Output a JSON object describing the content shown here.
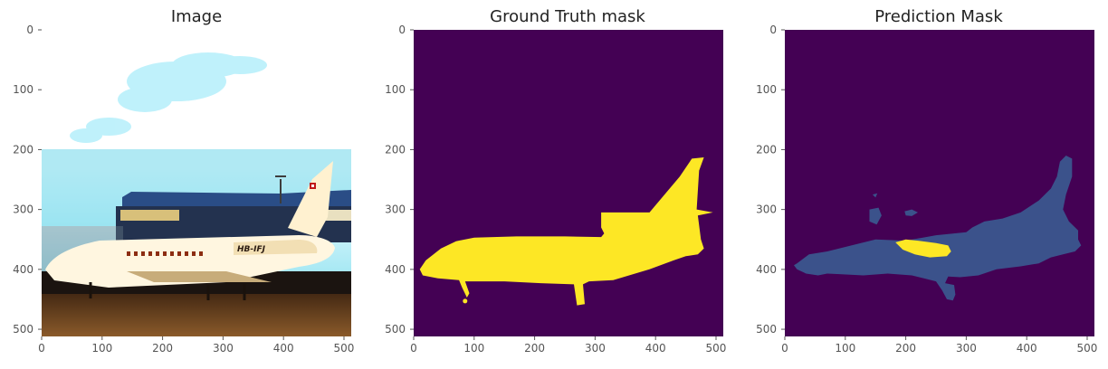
{
  "chart_data": [
    {
      "type": "image",
      "title": "Image",
      "xlim": [
        0,
        512
      ],
      "ylim": [
        512,
        0
      ],
      "xticks": [
        0,
        100,
        200,
        300,
        400,
        500
      ],
      "yticks": [
        0,
        100,
        200,
        300,
        400,
        500
      ],
      "grid": false,
      "content": "photo",
      "aircraft_registration": "HB-IFJ"
    },
    {
      "type": "heatmap",
      "title": "Ground Truth mask",
      "xlim": [
        0,
        512
      ],
      "ylim": [
        512,
        0
      ],
      "xticks": [
        0,
        100,
        200,
        300,
        400,
        500
      ],
      "yticks": [
        0,
        100,
        200,
        300,
        400,
        500
      ],
      "grid": false,
      "colors": {
        "background": "#440154",
        "foreground": "#fde725"
      },
      "mask_outline": [
        [
          10,
          400
        ],
        [
          20,
          385
        ],
        [
          45,
          365
        ],
        [
          70,
          353
        ],
        [
          100,
          347
        ],
        [
          170,
          345
        ],
        [
          250,
          345
        ],
        [
          310,
          346
        ],
        [
          315,
          340
        ],
        [
          310,
          330
        ],
        [
          310,
          305
        ],
        [
          390,
          305
        ],
        [
          440,
          245
        ],
        [
          460,
          215
        ],
        [
          480,
          213
        ],
        [
          472,
          235
        ],
        [
          468,
          300
        ],
        [
          495,
          305
        ],
        [
          470,
          310
        ],
        [
          475,
          350
        ],
        [
          480,
          365
        ],
        [
          470,
          375
        ],
        [
          450,
          378
        ],
        [
          430,
          385
        ],
        [
          390,
          400
        ],
        [
          330,
          418
        ],
        [
          290,
          420
        ],
        [
          280,
          425
        ],
        [
          283,
          458
        ],
        [
          270,
          460
        ],
        [
          265,
          425
        ],
        [
          210,
          423
        ],
        [
          150,
          420
        ],
        [
          100,
          420
        ],
        [
          85,
          420
        ],
        [
          92,
          440
        ],
        [
          88,
          447
        ],
        [
          80,
          430
        ],
        [
          75,
          418
        ],
        [
          40,
          415
        ],
        [
          15,
          410
        ]
      ],
      "mask_blob": [
        [
          80,
          450
        ],
        [
          90,
          456
        ]
      ]
    },
    {
      "type": "heatmap",
      "title": "Prediction Mask",
      "xlim": [
        0,
        512
      ],
      "ylim": [
        512,
        0
      ],
      "xticks": [
        0,
        100,
        200,
        300,
        400,
        500
      ],
      "yticks": [
        0,
        100,
        200,
        300,
        400,
        500
      ],
      "grid": false,
      "colors": {
        "background": "#440154",
        "class_1": "#3b528b",
        "class_2": "#fde725"
      },
      "class_1_outline": [
        [
          20,
          390
        ],
        [
          40,
          375
        ],
        [
          70,
          370
        ],
        [
          110,
          360
        ],
        [
          150,
          350
        ],
        [
          200,
          352
        ],
        [
          250,
          343
        ],
        [
          300,
          338
        ],
        [
          310,
          330
        ],
        [
          330,
          320
        ],
        [
          360,
          315
        ],
        [
          390,
          305
        ],
        [
          420,
          285
        ],
        [
          440,
          265
        ],
        [
          450,
          245
        ],
        [
          455,
          220
        ],
        [
          465,
          210
        ],
        [
          475,
          215
        ],
        [
          475,
          245
        ],
        [
          465,
          275
        ],
        [
          460,
          300
        ],
        [
          470,
          320
        ],
        [
          485,
          335
        ],
        [
          485,
          350
        ],
        [
          490,
          360
        ],
        [
          480,
          370
        ],
        [
          460,
          375
        ],
        [
          440,
          380
        ],
        [
          420,
          390
        ],
        [
          390,
          395
        ],
        [
          350,
          400
        ],
        [
          320,
          410
        ],
        [
          290,
          413
        ],
        [
          270,
          412
        ],
        [
          265,
          423
        ],
        [
          280,
          426
        ],
        [
          282,
          442
        ],
        [
          278,
          452
        ],
        [
          268,
          450
        ],
        [
          260,
          435
        ],
        [
          250,
          420
        ],
        [
          230,
          415
        ],
        [
          210,
          410
        ],
        [
          170,
          407
        ],
        [
          130,
          410
        ],
        [
          90,
          408
        ],
        [
          70,
          407
        ],
        [
          55,
          410
        ],
        [
          35,
          407
        ],
        [
          20,
          400
        ],
        [
          15,
          393
        ]
      ],
      "class_1_islands": [
        [
          [
            140,
            300
          ],
          [
            155,
            297
          ],
          [
            160,
            310
          ],
          [
            152,
            325
          ],
          [
            140,
            320
          ]
        ],
        [
          [
            198,
            303
          ],
          [
            210,
            300
          ],
          [
            220,
            305
          ],
          [
            210,
            311
          ],
          [
            200,
            310
          ]
        ],
        [
          [
            145,
            275
          ],
          [
            153,
            273
          ],
          [
            150,
            280
          ]
        ]
      ],
      "class_2_outline": [
        [
          183,
          355
        ],
        [
          200,
          350
        ],
        [
          220,
          352
        ],
        [
          250,
          356
        ],
        [
          270,
          360
        ],
        [
          275,
          370
        ],
        [
          268,
          378
        ],
        [
          240,
          380
        ],
        [
          215,
          375
        ],
        [
          195,
          367
        ]
      ]
    }
  ]
}
